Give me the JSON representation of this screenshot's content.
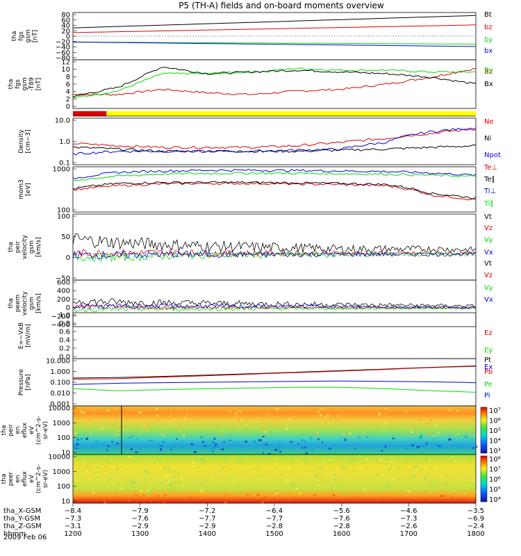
{
  "title": "P5 (TH-A) fields and on-board moments overview",
  "date_label": "2009 Feb 06",
  "colors": {
    "black": "#000000",
    "red": "#dd0000",
    "green": "#00dd00",
    "blue": "#0000dd",
    "yellow": "#ffff00"
  },
  "chart_data": [
    {
      "type": "line",
      "id": "p1",
      "ylabel": [
        "tha",
        "fgs",
        "gsm",
        "[nT]"
      ],
      "ylim": [
        -80,
        80
      ],
      "ticks": [
        "80",
        "60",
        "40",
        "20",
        "0",
        "−20",
        "−40",
        "−60",
        "−80"
      ],
      "x": [
        1200,
        1800
      ],
      "series": [
        {
          "name": "Bt",
          "color": "#000000",
          "values": [
            28,
            70
          ]
        },
        {
          "name": "bz",
          "color": "#dd0000",
          "values": [
            12,
            38
          ]
        },
        {
          "name": "by",
          "color": "#00dd00",
          "values": [
            -20,
            -27
          ]
        },
        {
          "name": "bx",
          "color": "#0000dd",
          "values": [
            -20,
            -35
          ]
        }
      ]
    },
    {
      "type": "line",
      "id": "p2",
      "ylabel": [
        "tha",
        "fgs",
        "gsm",
        "-T89",
        "[nT]"
      ],
      "ylim": [
        -1,
        13
      ],
      "ticks": [
        "12",
        "10",
        "8",
        "6",
        "4",
        "2",
        "0"
      ],
      "series": [
        {
          "name": "Bz",
          "color": "#dd0000",
          "values": [
            3,
            3,
            4.5,
            3.5,
            3,
            4,
            4.5,
            6,
            8,
            10.5
          ]
        },
        {
          "name": "By",
          "color": "#00dd00",
          "values": [
            2,
            4,
            9,
            9,
            9.5,
            10.5,
            10,
            10,
            9.5,
            9.5
          ]
        },
        {
          "name": "Bx",
          "color": "#000000",
          "values": [
            2.5,
            5,
            11,
            9,
            9.5,
            10,
            9.5,
            9,
            8,
            6
          ]
        }
      ]
    },
    {
      "type": "bar",
      "id": "mode-bar",
      "segments": [
        {
          "from": 1200,
          "to": 1250,
          "color": "#dd0000"
        },
        {
          "from": 1250,
          "to": 1800,
          "color": "#ffff00"
        }
      ]
    },
    {
      "type": "line",
      "id": "p3",
      "yscale": "log",
      "ylabel": [
        "Density",
        "[cm−3]"
      ],
      "ylim": [
        0.1,
        12
      ],
      "ticks": [
        "10.0",
        "1.0",
        "0.1"
      ],
      "series": [
        {
          "name": "Ne",
          "color": "#dd0000",
          "values": [
            0.9,
            0.7,
            0.6,
            0.6,
            0.6,
            0.7,
            1.0,
            1.5,
            2.5,
            4.0
          ]
        },
        {
          "name": "Ni",
          "color": "#000000",
          "values": [
            0.6,
            0.5,
            0.4,
            0.4,
            0.4,
            0.4,
            0.45,
            0.5,
            0.6,
            0.7
          ]
        },
        {
          "name": "Npot",
          "color": "#0000dd",
          "values": [
            0.3,
            0.4,
            0.4,
            0.4,
            0.4,
            0.45,
            0.5,
            1.0,
            3.0,
            4.5
          ]
        }
      ]
    },
    {
      "type": "line",
      "id": "p4",
      "yscale": "log",
      "ylabel": [
        "mom3",
        "[eV]"
      ],
      "ylim": [
        40,
        5500
      ],
      "ticks": [
        "1000",
        "100"
      ],
      "series": [
        {
          "name": "Te⊥",
          "color": "#dd0000",
          "values": [
            450,
            700,
            850,
            900,
            900,
            850,
            800,
            700,
            250,
            150
          ]
        },
        {
          "name": "Te∥",
          "color": "#000000",
          "values": [
            500,
            900,
            1000,
            1000,
            1000,
            950,
            900,
            800,
            300,
            180
          ]
        },
        {
          "name": "Ti⊥",
          "color": "#0000dd",
          "values": [
            1500,
            3000,
            3500,
            3800,
            3800,
            3700,
            3500,
            3300,
            2800,
            2200
          ]
        },
        {
          "name": "Ti∥",
          "color": "#00dd00",
          "values": [
            1200,
            2000,
            2500,
            2700,
            2800,
            2700,
            2600,
            2500,
            2200,
            1900
          ]
        }
      ]
    },
    {
      "type": "line",
      "id": "p5",
      "ylabel": [
        "tha",
        "peir",
        "velocity",
        "gsm",
        "[km/s]"
      ],
      "ylim": [
        -75,
        110
      ],
      "ticks": [
        "100",
        "50",
        "0",
        "−50"
      ],
      "series": [
        {
          "name": "Vt",
          "color": "#000000",
          "values": [
            40,
            30,
            25,
            20,
            18,
            15,
            12,
            12,
            12,
            10
          ]
        },
        {
          "name": "Vz",
          "color": "#dd0000",
          "values": [
            0,
            0,
            2,
            0,
            0,
            0,
            0,
            0,
            0,
            0
          ]
        },
        {
          "name": "Vy",
          "color": "#00dd00",
          "values": [
            -10,
            -12,
            -8,
            -5,
            -5,
            -4,
            -4,
            -3,
            -3,
            -3
          ]
        },
        {
          "name": "Vx",
          "color": "#0000dd",
          "values": [
            -5,
            -5,
            -3,
            -3,
            -3,
            -3,
            -3,
            -3,
            -3,
            -3
          ]
        }
      ]
    },
    {
      "type": "line",
      "id": "p6",
      "ylabel": [
        "tha",
        "peem",
        "velocity",
        "gsm",
        "[km/s]"
      ],
      "ylim": [
        -420,
        620
      ],
      "ticks": [
        "600",
        "400",
        "200",
        "0",
        "−200",
        "−400"
      ],
      "series": [
        {
          "name": "Vt",
          "color": "#000000",
          "values": [
            150,
            130,
            110,
            100,
            90,
            80,
            70,
            60,
            50,
            40
          ]
        },
        {
          "name": "Vz",
          "color": "#dd0000",
          "values": [
            20,
            15,
            10,
            10,
            10,
            10,
            10,
            5,
            5,
            5
          ]
        },
        {
          "name": "Vy",
          "color": "#00dd00",
          "values": [
            -40,
            -35,
            -30,
            -25,
            -20,
            -15,
            -15,
            -10,
            -10,
            -10
          ]
        },
        {
          "name": "Vx",
          "color": "#0000dd",
          "values": [
            30,
            40,
            40,
            40,
            35,
            35,
            30,
            25,
            15,
            10
          ]
        }
      ]
    },
    {
      "type": "line",
      "id": "p7",
      "ylabel": [
        "E=−VxB",
        "[mV/m]"
      ],
      "ylim": [
        0,
        1
      ],
      "ticks": [
        "1.0",
        "0.8",
        "0.6",
        "0.4",
        "0.2",
        "0.0"
      ],
      "series": [
        {
          "name": "Ez",
          "color": "#dd0000",
          "values": []
        },
        {
          "name": "Ey",
          "color": "#00dd00",
          "values": []
        },
        {
          "name": "Ex",
          "color": "#0000dd",
          "values": []
        }
      ]
    },
    {
      "type": "line",
      "id": "p8",
      "yscale": "log",
      "ylabel": [
        "Pressure",
        "[nPa]"
      ],
      "ylim": [
        0.001,
        12
      ],
      "ticks": [
        "10.000",
        "1.000",
        "0.100",
        "0.010",
        "0.001"
      ],
      "series": [
        {
          "name": "Pt",
          "color": "#000000",
          "values": [
            0.25,
            0.28,
            0.35,
            0.45,
            0.6,
            0.8,
            1.1,
            1.5,
            2.1,
            2.8
          ]
        },
        {
          "name": "Pb",
          "color": "#dd0000",
          "values": [
            0.2,
            0.22,
            0.3,
            0.4,
            0.55,
            0.75,
            1.0,
            1.4,
            2.0,
            2.6
          ]
        },
        {
          "name": "Pe",
          "color": "#00dd00",
          "values": [
            0.03,
            0.02,
            0.025,
            0.03,
            0.035,
            0.04,
            0.04,
            0.03,
            0.02,
            0.015
          ]
        },
        {
          "name": "Pi",
          "color": "#0000dd",
          "values": [
            0.07,
            0.09,
            0.1,
            0.11,
            0.12,
            0.13,
            0.14,
            0.13,
            0.12,
            0.1
          ]
        }
      ]
    },
    {
      "type": "heatmap",
      "id": "p9",
      "ylabel": [
        "tha",
        "peir",
        "en",
        "eflux",
        "eV",
        "(cm^2-s-",
        "sr-eV)"
      ],
      "ylim": [
        5,
        20000
      ],
      "ticks": [
        "10000",
        "1000",
        "100",
        "10"
      ],
      "colorbar_ticks": [
        "10⁷",
        "10⁶",
        "10⁵",
        "10⁴",
        "10³"
      ]
    },
    {
      "type": "heatmap",
      "id": "p10",
      "ylabel": [
        "tha",
        "peer",
        "en",
        "eflux",
        "eV",
        "(cm^2-s-",
        "sr-eV)"
      ],
      "ylim": [
        5,
        20000
      ],
      "ticks": [
        "10000",
        "1000",
        "100",
        "10"
      ],
      "colorbar_ticks": [
        "10⁸",
        "10⁷",
        "10⁶",
        "10⁵",
        "10⁴"
      ]
    }
  ],
  "xaxis": {
    "rows": [
      {
        "label": "tha_X-GSM",
        "values": [
          "−8.4",
          "−7.9",
          "−7.2",
          "−6.4",
          "−5.6",
          "−4.6",
          "−3.5"
        ]
      },
      {
        "label": "tha_Y-GSM",
        "values": [
          "−7.3",
          "−7.6",
          "−7.7",
          "−7.7",
          "−7.6",
          "−7.3",
          "−6.9"
        ]
      },
      {
        "label": "tha_Z-GSM",
        "values": [
          "−3.1",
          "−2.9",
          "−2.9",
          "−2.8",
          "−2.8",
          "−2.6",
          "−2.4"
        ]
      },
      {
        "label": "hhmm",
        "values": [
          "1200",
          "1300",
          "1400",
          "1500",
          "1600",
          "1700",
          "1800"
        ]
      }
    ]
  }
}
